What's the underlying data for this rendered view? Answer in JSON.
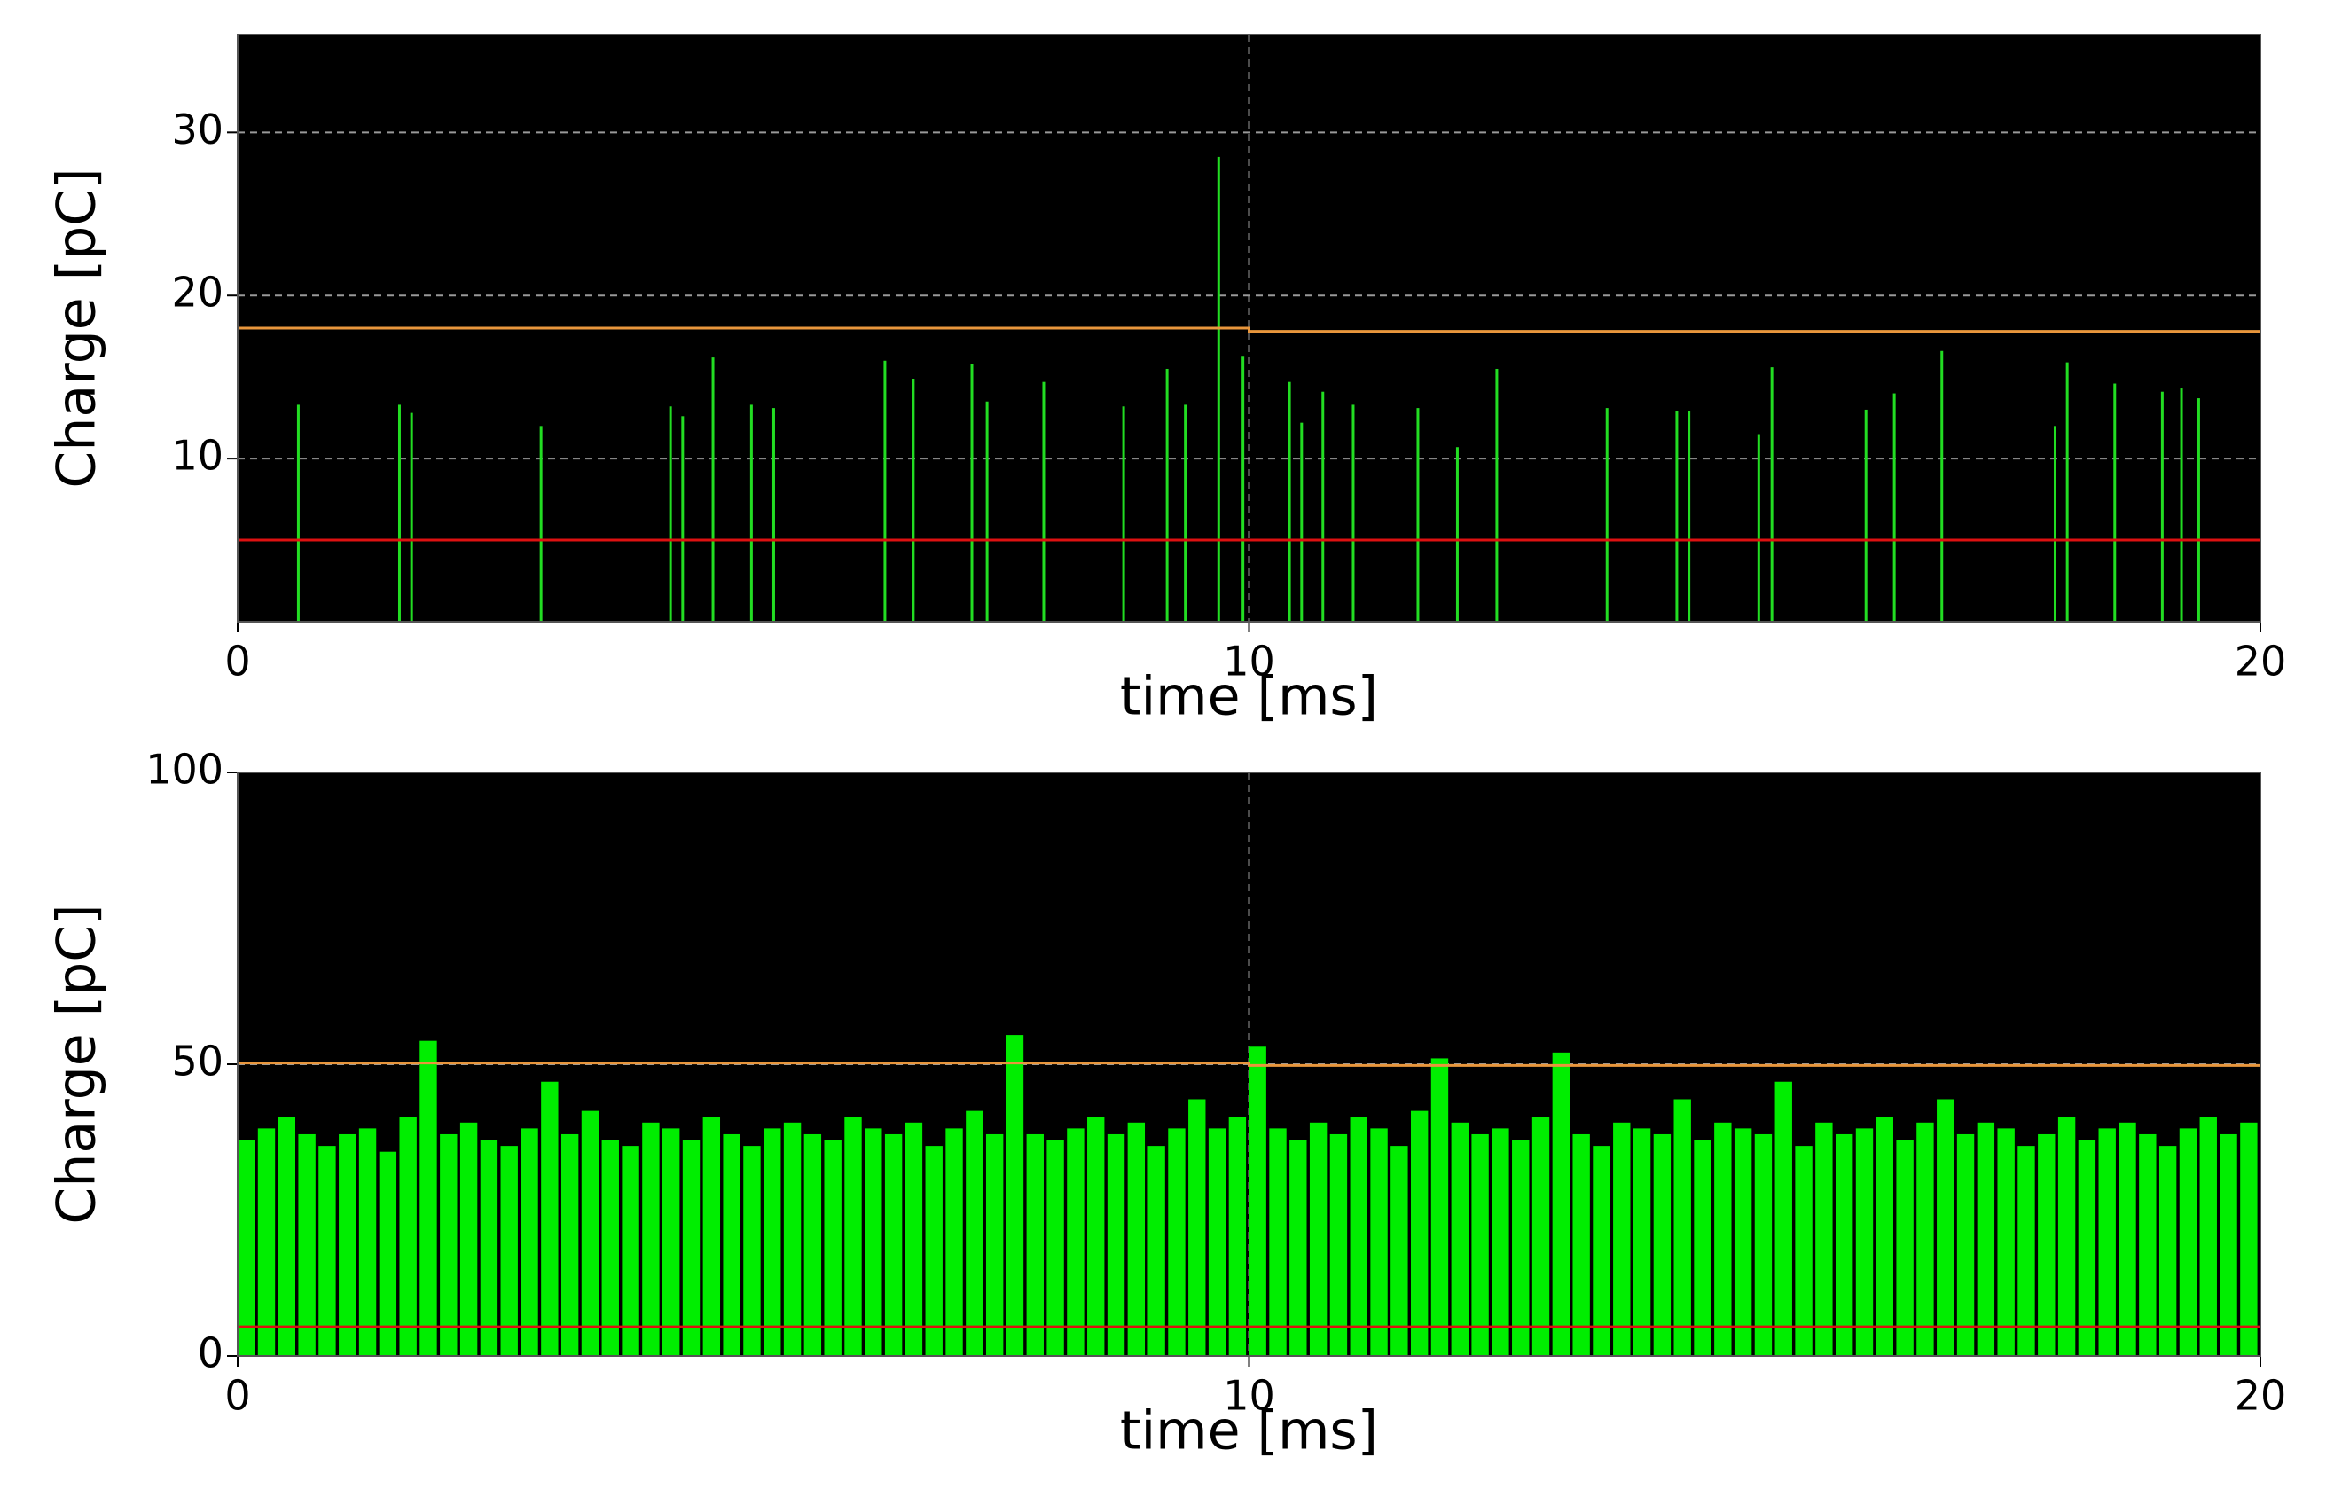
{
  "chart_data": [
    {
      "type": "bar",
      "xlabel": "time [ms]",
      "ylabel": "Charge [pC]",
      "xlim": [
        0,
        20
      ],
      "ylim": [
        0,
        36
      ],
      "xticks": [
        0,
        10,
        20
      ],
      "yticks": [
        10,
        20,
        30
      ],
      "grid": true,
      "series": [
        {
          "type": "bar",
          "color": "#22dd22",
          "x": [
            0.6,
            1.6,
            1.72,
            3.0,
            4.28,
            4.4,
            4.7,
            5.08,
            5.3,
            6.4,
            6.68,
            7.26,
            7.41,
            7.97,
            8.76,
            9.19,
            9.37,
            9.7,
            9.94,
            10.4,
            10.52,
            10.73,
            11.03,
            11.67,
            12.06,
            12.45,
            13.54,
            14.23,
            14.35,
            15.04,
            15.17,
            16.1,
            16.38,
            16.85,
            17.97,
            18.09,
            18.56,
            19.03,
            19.22,
            19.39
          ],
          "values": [
            13.3,
            13.3,
            12.8,
            12.0,
            13.2,
            12.6,
            16.2,
            13.3,
            13.1,
            16.0,
            14.9,
            15.8,
            13.5,
            14.7,
            13.2,
            15.5,
            13.3,
            28.5,
            16.3,
            14.7,
            12.2,
            14.1,
            13.3,
            13.1,
            10.7,
            15.5,
            13.1,
            12.9,
            12.9,
            11.5,
            15.6,
            13.0,
            14.0,
            16.6,
            12.0,
            15.9,
            14.6,
            14.1,
            14.3,
            13.7
          ]
        },
        {
          "type": "line",
          "color": "#e8963c",
          "x": [
            0,
            10,
            10,
            20
          ],
          "values": [
            18.0,
            18.0,
            17.8,
            17.8
          ]
        },
        {
          "type": "line",
          "color": "#dd1111",
          "x": [
            0,
            20
          ],
          "values": [
            5.0,
            5.0
          ]
        }
      ]
    },
    {
      "type": "bar",
      "xlabel": "time [ms]",
      "ylabel": "Charge [pC]",
      "xlim": [
        0,
        20
      ],
      "ylim": [
        0,
        100
      ],
      "xticks": [
        0,
        10,
        20
      ],
      "yticks": [
        0,
        50,
        100
      ],
      "grid": true,
      "series": [
        {
          "type": "bar",
          "color": "#00ee00",
          "x": [
            0,
            0.2,
            0.4,
            0.6,
            0.8,
            1,
            1.2,
            1.4,
            1.6,
            1.8,
            2,
            2.2,
            2.4,
            2.6,
            2.8,
            3,
            3.2,
            3.4,
            3.6,
            3.8,
            4,
            4.2,
            4.4,
            4.6,
            4.8,
            5,
            5.2,
            5.4,
            5.6,
            5.8,
            6,
            6.2,
            6.4,
            6.6,
            6.8,
            7,
            7.2,
            7.4,
            7.6,
            7.8,
            8,
            8.2,
            8.4,
            8.6,
            8.8,
            9,
            9.2,
            9.4,
            9.6,
            9.8,
            10,
            10.2,
            10.4,
            10.6,
            10.8,
            11,
            11.2,
            11.4,
            11.6,
            11.8,
            12,
            12.2,
            12.4,
            12.6,
            12.8,
            13,
            13.2,
            13.4,
            13.6,
            13.8,
            14,
            14.2,
            14.4,
            14.6,
            14.8,
            15,
            15.2,
            15.4,
            15.6,
            15.8,
            16,
            16.2,
            16.4,
            16.6,
            16.8,
            17,
            17.2,
            17.4,
            17.6,
            17.8,
            18,
            18.2,
            18.4,
            18.6,
            18.8,
            19,
            19.2,
            19.4,
            19.6,
            19.8
          ],
          "values": [
            37,
            39,
            41,
            38,
            36,
            38,
            39,
            35,
            41,
            54,
            38,
            40,
            37,
            36,
            39,
            47,
            38,
            42,
            37,
            36,
            40,
            39,
            37,
            41,
            38,
            36,
            39,
            40,
            38,
            37,
            41,
            39,
            38,
            40,
            36,
            39,
            42,
            38,
            55,
            38,
            37,
            39,
            41,
            38,
            40,
            36,
            39,
            44,
            39,
            41,
            53,
            39,
            37,
            40,
            38,
            41,
            39,
            36,
            42,
            51,
            40,
            38,
            39,
            37,
            41,
            52,
            38,
            36,
            40,
            39,
            38,
            44,
            37,
            40,
            39,
            38,
            47,
            36,
            40,
            38,
            39,
            41,
            37,
            40,
            44,
            38,
            40,
            39,
            36,
            38,
            41,
            37,
            39,
            40,
            38,
            36,
            39,
            41,
            38,
            40
          ]
        },
        {
          "type": "line",
          "color": "#e8963c",
          "x": [
            0,
            10,
            10,
            20
          ],
          "values": [
            50.2,
            50.2,
            49.8,
            49.8
          ]
        },
        {
          "type": "line",
          "color": "#dd1111",
          "x": [
            0,
            20
          ],
          "values": [
            5.0,
            5.0
          ]
        }
      ]
    }
  ]
}
